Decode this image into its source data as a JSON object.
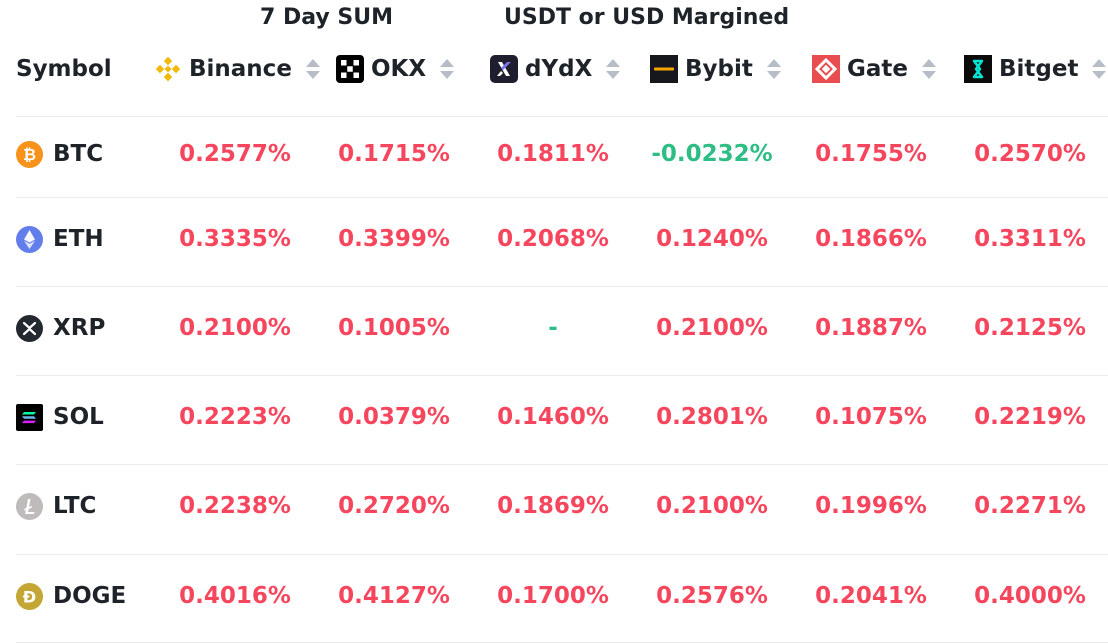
{
  "header": {
    "period_label": "7 Day SUM",
    "margin_label": "USDT or USD Margined",
    "symbol_label": "Symbol"
  },
  "colors": {
    "positive_rate": "#f6465d",
    "negative_rate": "#2ebd85",
    "divider": "#eaecef",
    "sort_arrow": "#b7bdc6"
  },
  "exchanges": [
    {
      "name": "Binance",
      "icon": "binance-logo-icon"
    },
    {
      "name": "OKX",
      "icon": "okx-logo-icon"
    },
    {
      "name": "dYdX",
      "icon": "dydx-logo-icon"
    },
    {
      "name": "Bybit",
      "icon": "bybit-logo-icon"
    },
    {
      "name": "Gate",
      "icon": "gate-logo-icon"
    },
    {
      "name": "Bitget",
      "icon": "bitget-logo-icon"
    }
  ],
  "rows": [
    {
      "symbol": "BTC",
      "icon": "btc-coin-icon",
      "values": [
        "0.2577%",
        "0.1715%",
        "0.1811%",
        "-0.0232%",
        "0.1755%",
        "0.2570%"
      ]
    },
    {
      "symbol": "ETH",
      "icon": "eth-coin-icon",
      "values": [
        "0.3335%",
        "0.3399%",
        "0.2068%",
        "0.1240%",
        "0.1866%",
        "0.3311%"
      ]
    },
    {
      "symbol": "XRP",
      "icon": "xrp-coin-icon",
      "values": [
        "0.2100%",
        "0.1005%",
        "-",
        "0.2100%",
        "0.1887%",
        "0.2125%"
      ]
    },
    {
      "symbol": "SOL",
      "icon": "sol-coin-icon",
      "values": [
        "0.2223%",
        "0.0379%",
        "0.1460%",
        "0.2801%",
        "0.1075%",
        "0.2219%"
      ]
    },
    {
      "symbol": "LTC",
      "icon": "ltc-coin-icon",
      "values": [
        "0.2238%",
        "0.2720%",
        "0.1869%",
        "0.2100%",
        "0.1996%",
        "0.2271%"
      ]
    },
    {
      "symbol": "DOGE",
      "icon": "doge-coin-icon",
      "values": [
        "0.4016%",
        "0.4127%",
        "0.1700%",
        "0.2576%",
        "0.2041%",
        "0.4000%"
      ]
    }
  ]
}
